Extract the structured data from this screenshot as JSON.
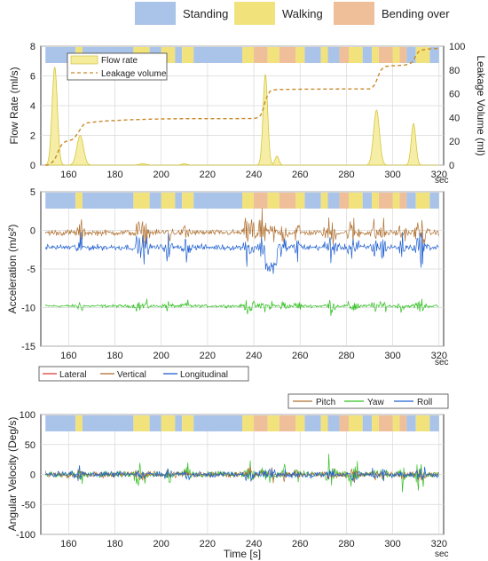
{
  "activity_legend": [
    {
      "label": "Standing",
      "color": "#a9c4e8"
    },
    {
      "label": "Walking",
      "color": "#f2e27c"
    },
    {
      "label": "Bending over",
      "color": "#efbf9a"
    }
  ],
  "activity_segments": [
    {
      "start": 150,
      "end": 163,
      "activity": "Standing"
    },
    {
      "start": 163,
      "end": 166,
      "activity": "Walking"
    },
    {
      "start": 166,
      "end": 188,
      "activity": "Standing"
    },
    {
      "start": 188,
      "end": 195,
      "activity": "Walking"
    },
    {
      "start": 195,
      "end": 200,
      "activity": "Standing"
    },
    {
      "start": 200,
      "end": 206,
      "activity": "Walking"
    },
    {
      "start": 206,
      "end": 209,
      "activity": "Standing"
    },
    {
      "start": 209,
      "end": 214,
      "activity": "Walking"
    },
    {
      "start": 214,
      "end": 235,
      "activity": "Standing"
    },
    {
      "start": 235,
      "end": 240,
      "activity": "Walking"
    },
    {
      "start": 240,
      "end": 246,
      "activity": "Bending over"
    },
    {
      "start": 246,
      "end": 251,
      "activity": "Walking"
    },
    {
      "start": 251,
      "end": 258,
      "activity": "Bending over"
    },
    {
      "start": 258,
      "end": 262,
      "activity": "Walking"
    },
    {
      "start": 262,
      "end": 269,
      "activity": "Standing"
    },
    {
      "start": 269,
      "end": 272,
      "activity": "Walking"
    },
    {
      "start": 272,
      "end": 277,
      "activity": "Standing"
    },
    {
      "start": 277,
      "end": 281,
      "activity": "Bending over"
    },
    {
      "start": 281,
      "end": 287,
      "activity": "Walking"
    },
    {
      "start": 287,
      "end": 291,
      "activity": "Standing"
    },
    {
      "start": 291,
      "end": 294,
      "activity": "Walking"
    },
    {
      "start": 294,
      "end": 300,
      "activity": "Bending over"
    },
    {
      "start": 300,
      "end": 303,
      "activity": "Walking"
    },
    {
      "start": 303,
      "end": 306,
      "activity": "Bending over"
    },
    {
      "start": 306,
      "end": 310,
      "activity": "Standing"
    },
    {
      "start": 310,
      "end": 316,
      "activity": "Walking"
    },
    {
      "start": 316,
      "end": 320,
      "activity": "Standing"
    }
  ],
  "chart_data": [
    {
      "type": "area",
      "xlim": [
        148,
        322
      ],
      "x_ticks": [
        160,
        180,
        200,
        220,
        240,
        260,
        280,
        300,
        320
      ],
      "x_unit": "sec",
      "ylabel": "Flow Rate (ml/s)",
      "ylim": [
        0,
        8
      ],
      "y_ticks": [
        0,
        2,
        4,
        6,
        8
      ],
      "ylabel_right": "Leakage Volume (ml)",
      "ylim_right": [
        0,
        100
      ],
      "y_ticks_right": [
        0,
        20,
        40,
        60,
        80,
        100
      ],
      "grid": true,
      "legend_position": "top-left",
      "series": [
        {
          "name": "Flow rate",
          "color": "#f0e070",
          "axis": "left",
          "peaks": [
            {
              "x": 154,
              "y": 6.6,
              "width": 1.6
            },
            {
              "x": 165,
              "y": 2.0,
              "width": 2.0
            },
            {
              "x": 192,
              "y": 0.1,
              "width": 2.0
            },
            {
              "x": 210,
              "y": 0.1,
              "width": 1.5
            },
            {
              "x": 245,
              "y": 6.1,
              "width": 1.4
            },
            {
              "x": 250,
              "y": 0.6,
              "width": 1.2
            },
            {
              "x": 293,
              "y": 3.7,
              "width": 1.8
            },
            {
              "x": 309,
              "y": 2.8,
              "width": 1.4
            }
          ]
        },
        {
          "name": "Leakage volume",
          "color": "#c88a2a",
          "axis": "right",
          "style": "dashed",
          "x": [
            150,
            151,
            152,
            153,
            154,
            155,
            156,
            157,
            158,
            159,
            160,
            161,
            162,
            163,
            164,
            165,
            166,
            167,
            168,
            170,
            175,
            180,
            185,
            190,
            195,
            200,
            210,
            220,
            230,
            240,
            242,
            243,
            244,
            245,
            246,
            247,
            248,
            250,
            252,
            260,
            280,
            290,
            291,
            292,
            293,
            294,
            295,
            296,
            297,
            300,
            305,
            307,
            308,
            309,
            310,
            311,
            312,
            315,
            318,
            320
          ],
          "y": [
            0,
            0,
            1,
            2.5,
            5,
            9,
            14,
            17,
            19,
            20,
            20.5,
            21,
            22,
            24,
            27,
            30,
            33,
            35,
            35.5,
            36,
            37,
            37.5,
            38,
            38.3,
            38.6,
            38.8,
            39,
            39,
            39,
            39.2,
            40,
            42,
            47,
            54,
            59,
            62,
            63,
            63.4,
            63.6,
            63.8,
            64,
            64,
            65,
            67,
            71,
            76,
            80,
            82,
            83,
            83.5,
            84,
            85,
            86,
            88,
            92,
            95,
            96.5,
            97.5,
            98,
            98
          ]
        }
      ]
    },
    {
      "type": "line",
      "xlim": [
        148,
        322
      ],
      "x_ticks": [
        160,
        180,
        200,
        220,
        240,
        260,
        280,
        300,
        320
      ],
      "x_unit": "sec",
      "ylabel": "Acceleration (m/s²)",
      "ylim": [
        -15,
        5
      ],
      "y_ticks": [
        -15,
        -10,
        -5,
        0,
        5
      ],
      "grid": true,
      "legend_position": "bottom",
      "series": [
        {
          "name": "Lateral",
          "color": "#e04040",
          "baseline": -10,
          "noise": 0.2
        },
        {
          "name": "Vertical",
          "color": "#b07030",
          "baseline": -0.3,
          "noise": 0.3
        },
        {
          "name": "Longitudinal",
          "color": "#2060d0",
          "baseline": -2.2,
          "noise": 0.3
        },
        {
          "name": "",
          "color": "#30c020",
          "baseline": -9.8,
          "noise": 0.15
        }
      ]
    },
    {
      "type": "line",
      "xlim": [
        148,
        322
      ],
      "x_ticks": [
        160,
        180,
        200,
        220,
        240,
        260,
        280,
        300,
        320
      ],
      "x_unit": "sec",
      "xlabel": "Time [s]",
      "ylabel": "Angular Velocity (Deg/s)",
      "ylim": [
        -100,
        100
      ],
      "y_ticks": [
        -100,
        -50,
        0,
        50,
        100
      ],
      "grid": true,
      "legend_position": "top-right",
      "series": [
        {
          "name": "Pitch",
          "color": "#b07030",
          "baseline": 0,
          "noise": 2
        },
        {
          "name": "Yaw",
          "color": "#30c020",
          "baseline": 0,
          "noise": 2
        },
        {
          "name": "Roll",
          "color": "#2060d0",
          "baseline": 0,
          "noise": 2
        }
      ]
    }
  ]
}
